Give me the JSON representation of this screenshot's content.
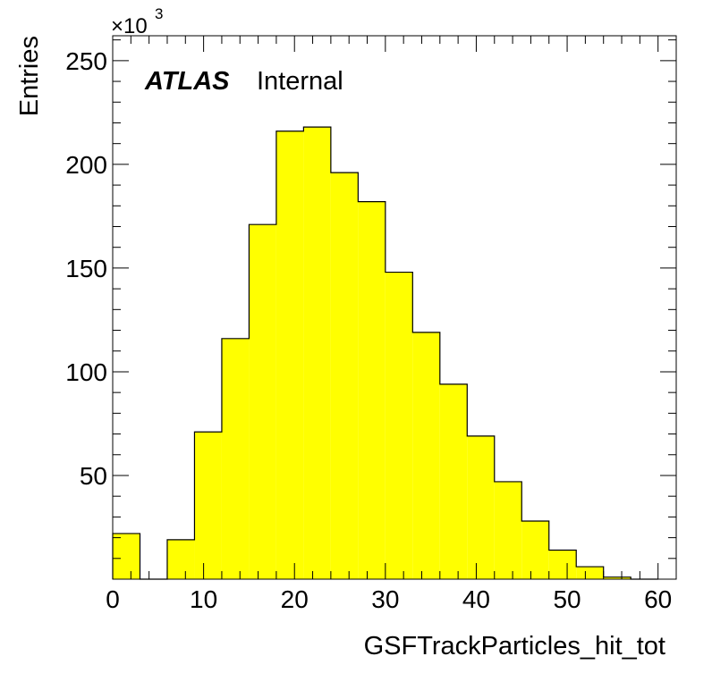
{
  "chart_data": {
    "type": "bar",
    "histogram": true,
    "title": "",
    "xlabel": "GSFTrackParticles_hit_tot",
    "ylabel": "Entries",
    "y_multiplier_label": "×10",
    "y_multiplier_exponent": "3",
    "xlim": [
      0,
      62
    ],
    "ylim": [
      0,
      262
    ],
    "x_ticks": [
      0,
      10,
      20,
      30,
      40,
      50,
      60
    ],
    "x_tick_labels": [
      "0",
      "10",
      "20",
      "30",
      "40",
      "50",
      "60"
    ],
    "y_ticks": [
      50,
      100,
      150,
      200,
      250
    ],
    "y_tick_labels": [
      "50",
      "100",
      "150",
      "200",
      "250"
    ],
    "bin_width": 3.0,
    "bin_edges": [
      0,
      3,
      6,
      9,
      12,
      15,
      18,
      21,
      24,
      27,
      30,
      33,
      36,
      39,
      42,
      45,
      48,
      51,
      54,
      57,
      60
    ],
    "values": [
      22,
      0,
      19,
      71,
      116,
      171,
      216,
      218,
      196,
      182,
      148,
      119,
      94,
      69,
      47,
      28,
      14,
      6,
      1,
      0
    ],
    "fill_color": "#ffff00",
    "edge_color": "#000000",
    "grid": false,
    "label": {
      "experiment": "ATLAS",
      "status": "Internal"
    }
  }
}
